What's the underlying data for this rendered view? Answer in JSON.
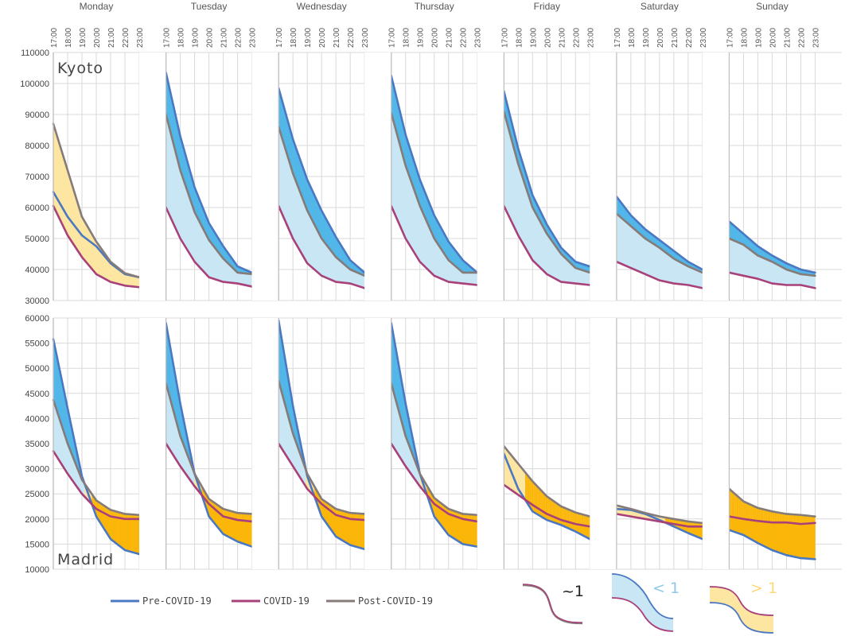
{
  "colors": {
    "pre": "#4a78c2",
    "covid": "#a8407a",
    "post": "#857b78",
    "fill_below": "#c9e6f4",
    "fill_dark_blue": "#52b7e8",
    "fill_light_yellow": "#fde5a2",
    "fill_orange": "#fbb60a",
    "grid": "#d9d9d9",
    "divider": "#bfbfbf"
  },
  "chart_data": {
    "type": "line",
    "days": [
      "Monday",
      "Tuesday",
      "Wednesday",
      "Thursday",
      "Friday",
      "Saturday",
      "Sunday"
    ],
    "hours": [
      "17:00",
      "18:00",
      "19:00",
      "20:00",
      "21:00",
      "22:00",
      "23:00"
    ],
    "legend": {
      "pre": "Pre-COVID-19",
      "covid": "COVID-19",
      "post": "Post-COVID-19"
    },
    "ratio_legend": {
      "approx": "~1",
      "less": "< 1",
      "greater": "> 1"
    },
    "panels": [
      {
        "city": "Kyoto",
        "ylim": [
          30000,
          110000
        ],
        "ytick_labels": [
          "30000",
          "40000",
          "50000",
          "60000",
          "70000",
          "80000",
          "90000",
          "100000",
          "110000"
        ],
        "series": {
          "Monday": {
            "pre": [
              65000,
              57000,
              51000,
              47500,
              42000,
              38500,
              37500
            ],
            "covid": [
              60500,
              51000,
              44000,
              38500,
              36000,
              34800,
              34300
            ],
            "post": [
              87000,
              72000,
              57000,
              49000,
              42500,
              38800,
              37500
            ]
          },
          "Tuesday": {
            "pre": [
              103500,
              83000,
              66500,
              55000,
              47500,
              41000,
              39000
            ],
            "covid": [
              60000,
              50000,
              42500,
              37500,
              36000,
              35500,
              34500
            ],
            "post": [
              90000,
              72000,
              58500,
              49500,
              43500,
              39000,
              38500
            ]
          },
          "Wednesday": {
            "pre": [
              98500,
              82000,
              69000,
              59000,
              50500,
              43000,
              39000
            ],
            "covid": [
              60500,
              50000,
              42000,
              38000,
              36000,
              35500,
              34000
            ],
            "post": [
              86000,
              71000,
              59000,
              50000,
              44000,
              40000,
              38000
            ]
          },
          "Thursday": {
            "pre": [
              102500,
              83500,
              69000,
              57500,
              49000,
              43000,
              39000
            ],
            "covid": [
              60500,
              50000,
              42500,
              38000,
              36000,
              35500,
              35000
            ],
            "post": [
              90500,
              73500,
              60500,
              50000,
              43000,
              39000,
              39000
            ]
          },
          "Friday": {
            "pre": [
              97500,
              79000,
              64000,
              54500,
              47000,
              42500,
              41000
            ],
            "covid": [
              60500,
              51000,
              43000,
              38500,
              36000,
              35500,
              35000
            ],
            "post": [
              91000,
              74000,
              60000,
              51500,
              45000,
              40500,
              39000
            ]
          },
          "Saturday": {
            "pre": [
              63500,
              57500,
              53000,
              49500,
              46000,
              42500,
              40000
            ],
            "covid": [
              42500,
              40500,
              38500,
              36500,
              35500,
              35000,
              34000
            ],
            "post": [
              58000,
              54000,
              50000,
              47000,
              43500,
              41000,
              39000
            ]
          },
          "Sunday": {
            "pre": [
              55500,
              51500,
              47500,
              44500,
              42000,
              40000,
              39000
            ],
            "covid": [
              39000,
              38000,
              37000,
              35500,
              35000,
              35000,
              34000
            ],
            "post": [
              50000,
              48000,
              44500,
              42500,
              40000,
              38500,
              38000
            ]
          }
        }
      },
      {
        "city": "Madrid",
        "ylim": [
          10000,
          60000
        ],
        "ytick_labels": [
          "10000",
          "15000",
          "20000",
          "25000",
          "30000",
          "35000",
          "40000",
          "45000",
          "50000",
          "55000",
          "60000"
        ],
        "series": {
          "Monday": {
            "pre": [
              55800,
              42000,
              28500,
              20500,
              16000,
              13800,
              13000
            ],
            "covid": [
              33500,
              29000,
              25000,
              22000,
              20500,
              20000,
              20000
            ],
            "post": [
              43700,
              35000,
              27800,
              23700,
              21800,
              21000,
              20800
            ]
          },
          "Tuesday": {
            "pre": [
              59000,
              43000,
              29000,
              20500,
              17000,
              15500,
              14500
            ],
            "covid": [
              35000,
              30500,
              26500,
              23000,
              20500,
              19800,
              19500
            ],
            "post": [
              47000,
              36500,
              29000,
              24000,
              22000,
              21200,
              21000
            ]
          },
          "Wednesday": {
            "pre": [
              59500,
              42500,
              28500,
              20500,
              16500,
              14800,
              14000
            ],
            "covid": [
              35000,
              30500,
              26000,
              23000,
              20800,
              20000,
              19800
            ],
            "post": [
              47500,
              37000,
              29000,
              24000,
              22000,
              21200,
              21000
            ]
          },
          "Thursday": {
            "pre": [
              59000,
              43000,
              29000,
              20500,
              16800,
              15000,
              14500
            ],
            "covid": [
              35000,
              30500,
              26500,
              23000,
              21000,
              20000,
              19500
            ],
            "post": [
              47000,
              36500,
              29000,
              24200,
              22000,
              21000,
              20800
            ]
          },
          "Friday": {
            "pre": [
              33000,
              26000,
              21500,
              19800,
              18800,
              17500,
              16000
            ],
            "covid": [
              26800,
              24800,
              22800,
              21000,
              19800,
              19000,
              18500
            ],
            "post": [
              34500,
              31000,
              27500,
              24500,
              22500,
              21300,
              20500
            ]
          },
          "Saturday": {
            "pre": [
              22000,
              21800,
              21000,
              19800,
              18500,
              17200,
              16000
            ],
            "covid": [
              21000,
              20500,
              20000,
              19500,
              19000,
              18500,
              18500
            ],
            "post": [
              22700,
              22000,
              21200,
              20500,
              20000,
              19500,
              19200
            ]
          },
          "Sunday": {
            "pre": [
              17800,
              16800,
              15200,
              13800,
              12800,
              12200,
              12000
            ],
            "covid": [
              20500,
              20000,
              19600,
              19300,
              19300,
              19000,
              19200
            ],
            "post": [
              26000,
              23500,
              22200,
              21500,
              21000,
              20800,
              20500
            ]
          }
        }
      }
    ]
  }
}
